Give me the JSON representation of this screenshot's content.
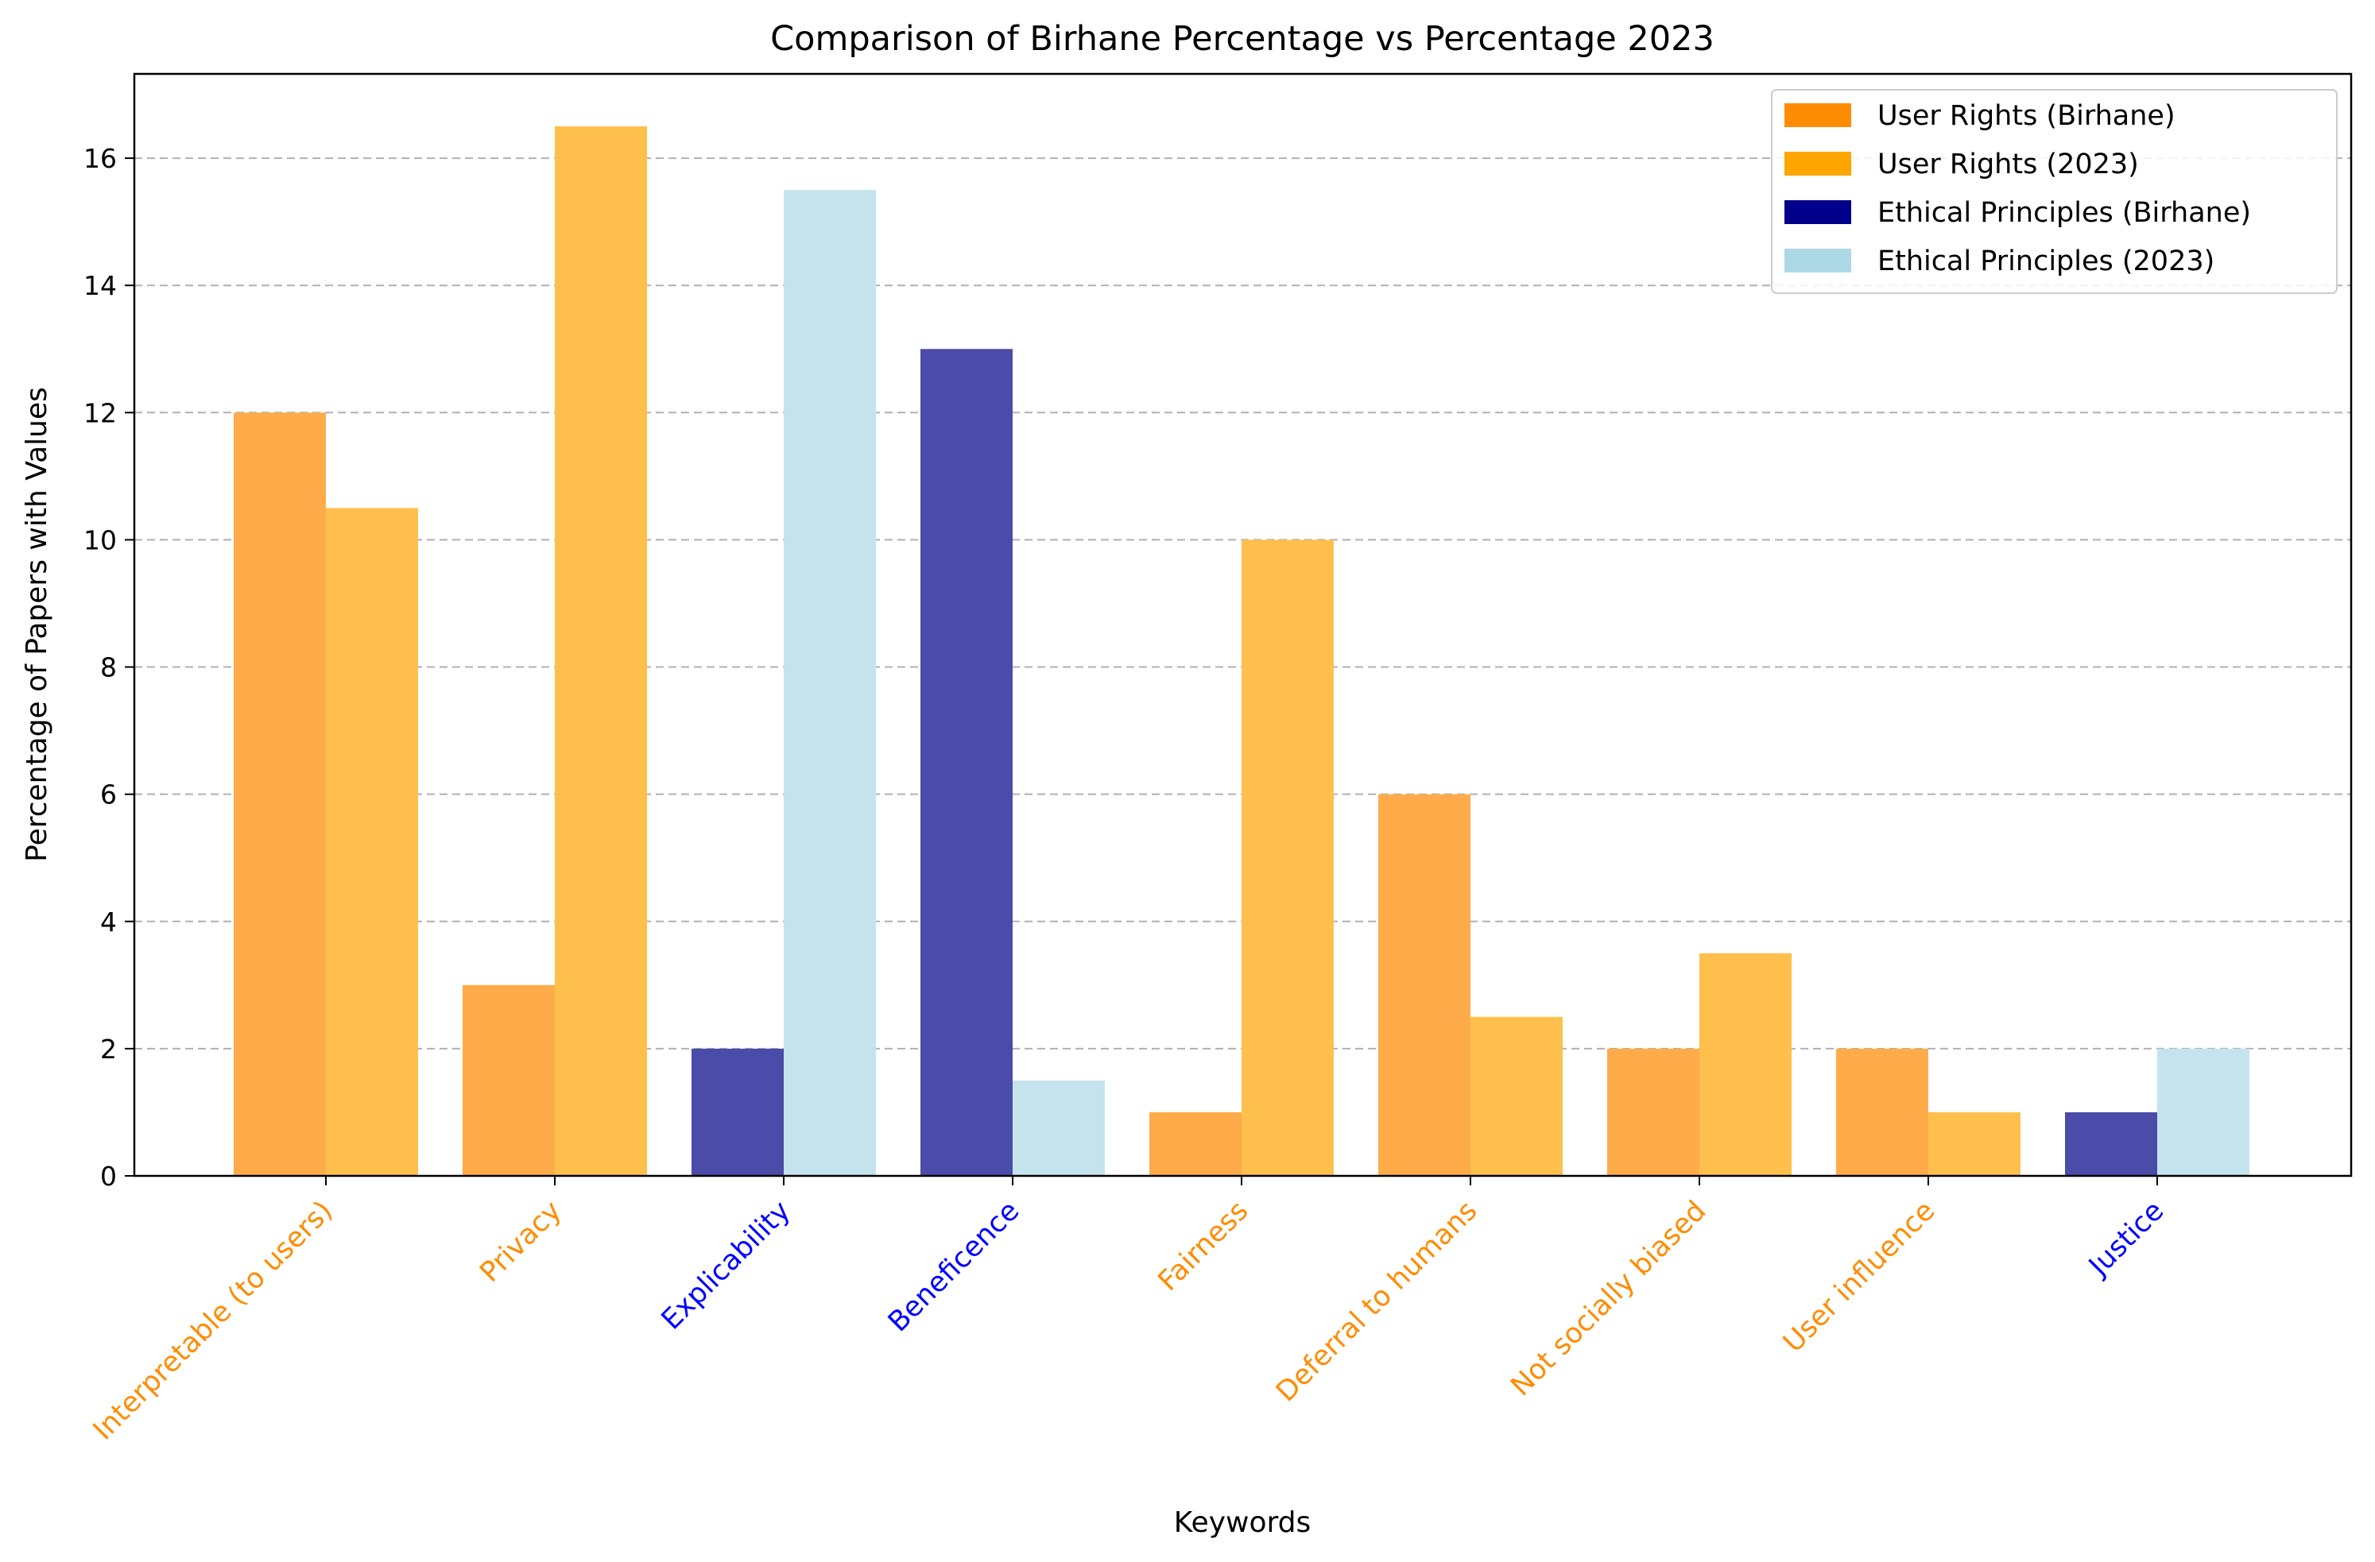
{
  "chart_data": {
    "type": "bar",
    "title": "Comparison of Birhane Percentage vs Percentage 2023",
    "xlabel": "Keywords",
    "ylabel": "Percentage of Papers with Values",
    "ylim": [
      0,
      17.325
    ],
    "yticks": [
      0,
      2,
      4,
      6,
      8,
      10,
      12,
      14,
      16
    ],
    "grid": "horizontal dashed",
    "legend_position": "top-right",
    "categories": [
      {
        "label": "Interpretable (to users)",
        "group": "User Rights",
        "birhane": 12,
        "y2023": 10.5
      },
      {
        "label": "Privacy",
        "group": "User Rights",
        "birhane": 3,
        "y2023": 16.5
      },
      {
        "label": "Explicability",
        "group": "Ethical Principles",
        "birhane": 2,
        "y2023": 15.5
      },
      {
        "label": "Beneficence",
        "group": "Ethical Principles",
        "birhane": 13,
        "y2023": 1.5
      },
      {
        "label": "Fairness",
        "group": "User Rights",
        "birhane": 1,
        "y2023": 10
      },
      {
        "label": "Deferral to humans",
        "group": "User Rights",
        "birhane": 6,
        "y2023": 2.5
      },
      {
        "label": "Not socially biased",
        "group": "User Rights",
        "birhane": 2,
        "y2023": 3.5
      },
      {
        "label": "User influence",
        "group": "User Rights",
        "birhane": 2,
        "y2023": 1
      },
      {
        "label": "Justice",
        "group": "Ethical Principles",
        "birhane": 1,
        "y2023": 2
      }
    ],
    "colors": {
      "User Rights": {
        "birhane": "#ffab4a",
        "y2023": "#ffbf4d",
        "label": "#ff8c00"
      },
      "Ethical Principles": {
        "birhane": "#4b4baa",
        "y2023": "#c5e3ec",
        "label": "#0000ff"
      }
    },
    "legend": [
      {
        "label": "User Rights (Birhane)",
        "color": "#ff8c00"
      },
      {
        "label": "User Rights (2023)",
        "color": "#ffa500"
      },
      {
        "label": "Ethical Principles (Birhane)",
        "color": "#00008b"
      },
      {
        "label": "Ethical Principles (2023)",
        "color": "#add8e6"
      }
    ]
  }
}
